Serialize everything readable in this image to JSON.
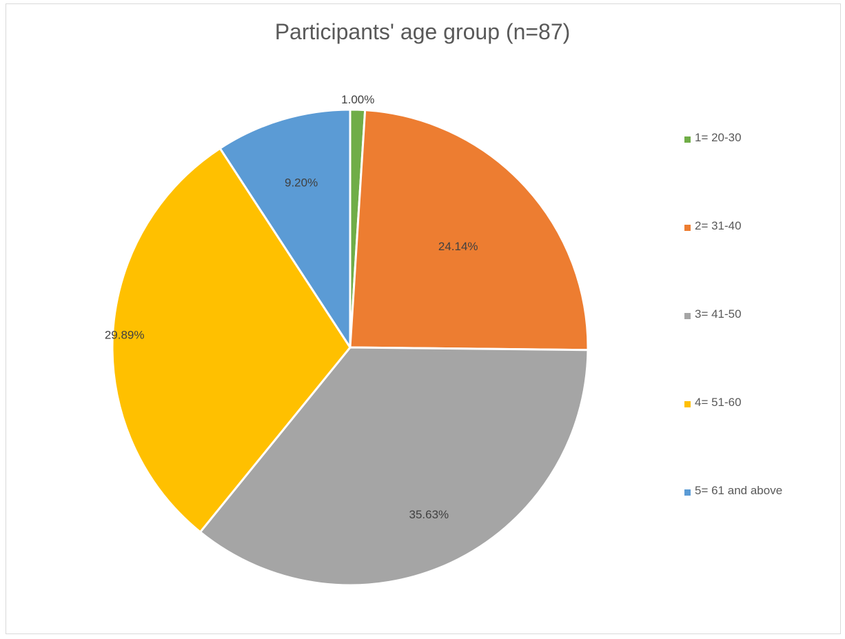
{
  "chart_data": {
    "type": "pie",
    "title": "Participants' age group (n=87)",
    "slices": [
      {
        "label": "1= 20-30",
        "value": 1.0,
        "display": "1.00%",
        "color": "#70ad47"
      },
      {
        "label": "2= 31-40",
        "value": 24.14,
        "display": "24.14%",
        "color": "#ed7d31"
      },
      {
        "label": "3= 41-50",
        "value": 35.63,
        "display": "35.63%",
        "color": "#a5a5a5"
      },
      {
        "label": "4= 51-60",
        "value": 29.89,
        "display": "29.89%",
        "color": "#ffc000"
      },
      {
        "label": "5= 61 and above",
        "value": 9.2,
        "display": "9.20%",
        "color": "#5b9bd5"
      }
    ],
    "legend_position": "right"
  }
}
